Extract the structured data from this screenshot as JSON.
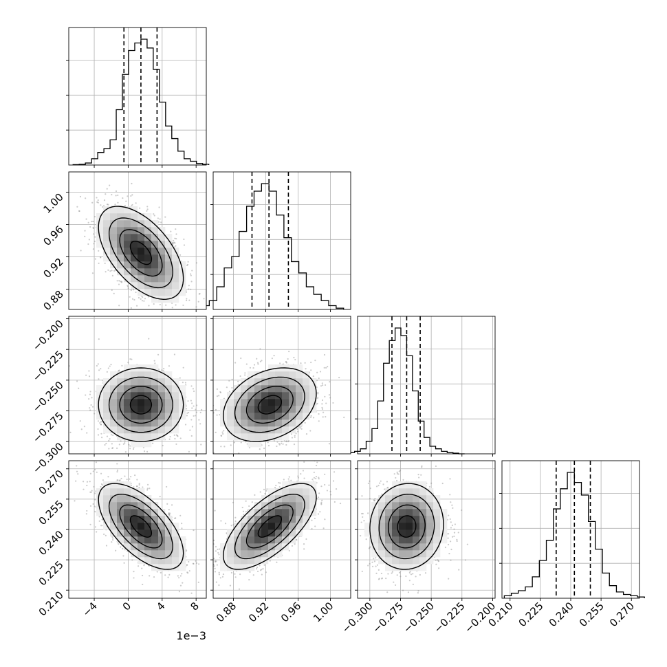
{
  "figure": {
    "title": "",
    "offset_text": "1e−3"
  },
  "chart_data": {
    "type": "corner",
    "params": [
      {
        "index": 0,
        "range": [
          -7,
          9.2
        ],
        "ticks": [
          -4,
          0,
          4,
          8
        ],
        "tick_labels": [
          "−4",
          "0",
          "4",
          "8"
        ],
        "offset_text": "1e−3",
        "median": 1.5,
        "quantiles": [
          -0.5,
          1.5,
          3.4
        ],
        "hist_density": [
          0.003,
          0.006,
          0.016,
          0.05,
          0.1,
          0.13,
          0.2,
          0.44,
          0.72,
          0.91,
          0.97,
          1.0,
          0.93,
          0.76,
          0.5,
          0.31,
          0.21,
          0.11,
          0.05,
          0.03,
          0.012,
          0.006
        ]
      },
      {
        "index": 1,
        "range": [
          0.855,
          1.025
        ],
        "ticks": [
          0.88,
          0.92,
          0.96,
          1.0
        ],
        "tick_labels": [
          "0.88",
          "0.92",
          "0.96",
          "1.00"
        ],
        "median": 0.924,
        "quantiles": [
          0.903,
          0.924,
          0.948
        ],
        "hist_density": [
          0.02,
          0.03,
          0.07,
          0.18,
          0.33,
          0.42,
          0.62,
          0.82,
          0.94,
          1.0,
          0.94,
          0.75,
          0.57,
          0.38,
          0.29,
          0.18,
          0.12,
          0.07,
          0.03,
          0.01
        ]
      },
      {
        "index": 2,
        "range": [
          -0.31,
          -0.198
        ],
        "ticks": [
          -0.3,
          -0.275,
          -0.25,
          -0.225,
          -0.2
        ],
        "tick_labels": [
          "−0.300",
          "−0.275",
          "−0.250",
          "−0.225",
          "−0.200"
        ],
        "median": -0.27,
        "quantiles": [
          -0.282,
          -0.27,
          -0.259
        ],
        "hist_density": [
          0.01,
          0.02,
          0.04,
          0.1,
          0.2,
          0.42,
          0.72,
          0.9,
          1.0,
          0.94,
          0.78,
          0.5,
          0.26,
          0.13,
          0.06,
          0.04,
          0.02,
          0.01,
          0.005,
          0.0
        ]
      },
      {
        "index": 3,
        "range": [
          0.206,
          0.274
        ],
        "ticks": [
          0.21,
          0.225,
          0.24,
          0.255,
          0.27
        ],
        "tick_labels": [
          "0.210",
          "0.225",
          "0.240",
          "0.255",
          "0.270"
        ],
        "median": 0.2418,
        "quantiles": [
          0.2328,
          0.2418,
          0.2497
        ],
        "hist_density": [
          0.02,
          0.04,
          0.06,
          0.09,
          0.17,
          0.3,
          0.46,
          0.71,
          0.87,
          1.0,
          0.92,
          0.82,
          0.61,
          0.39,
          0.2,
          0.1,
          0.05,
          0.03,
          0.02,
          0.01
        ]
      }
    ],
    "pairs": [
      {
        "x": 0,
        "y": 1,
        "center": [
          1.5,
          0.925
        ],
        "sigma": [
          2.0,
          0.023
        ],
        "rho": -0.55
      },
      {
        "x": 0,
        "y": 2,
        "center": [
          1.5,
          -0.27
        ],
        "sigma": [
          2.0,
          0.012
        ],
        "rho": 0.0
      },
      {
        "x": 1,
        "y": 2,
        "center": [
          0.925,
          -0.27
        ],
        "sigma": [
          0.023,
          0.012
        ],
        "rho": 0.3
      },
      {
        "x": 0,
        "y": 3,
        "center": [
          1.5,
          0.2415
        ],
        "sigma": [
          2.0,
          0.0085
        ],
        "rho": -0.62
      },
      {
        "x": 1,
        "y": 3,
        "center": [
          0.925,
          0.2415
        ],
        "sigma": [
          0.023,
          0.0085
        ],
        "rho": 0.68
      },
      {
        "x": 2,
        "y": 3,
        "center": [
          -0.27,
          0.2415
        ],
        "sigma": [
          0.012,
          0.0085
        ],
        "rho": 0.05
      }
    ],
    "contour_levels": [
      0.5,
      1.0,
      1.5,
      2.0
    ],
    "colors": {
      "line": "#000000",
      "scatter": "#8c8c8c",
      "grid": "#b0b0b0",
      "background": "#ffffff"
    },
    "grid": true
  }
}
